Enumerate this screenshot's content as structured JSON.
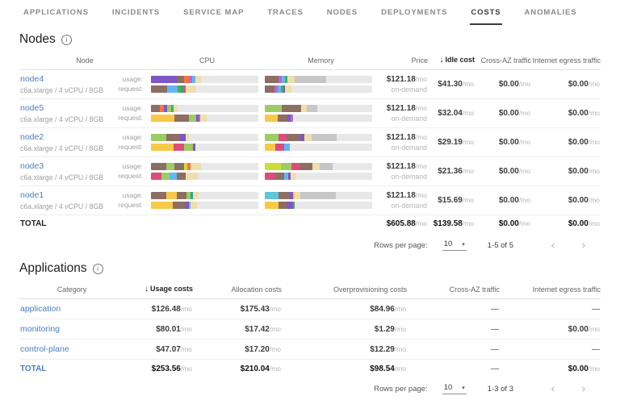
{
  "ui": {
    "per_mo": "/mo",
    "usage_label": "usage:",
    "request_label": "request:",
    "dash": "—",
    "sort_icon": "↓",
    "info_icon": "i",
    "rows_per_page_label": "Rows per page:",
    "page_size": "10",
    "caret_icon": "▾",
    "prev_icon": "‹",
    "next_icon": "›"
  },
  "palette": {
    "purple": "#7e57c2",
    "magenta": "#ba68c8",
    "brown": "#8d6e63",
    "orange": "#ff7043",
    "red": "#ef5350",
    "blue": "#64b5f6",
    "teal": "#26a69a",
    "green": "#9ccc65",
    "dgreen": "#4caf50",
    "yellowgreen": "#cddc39",
    "yellow": "#f7c948",
    "tan": "#eedfab",
    "pink": "#dd4d7b",
    "cyan": "#5ec5dc",
    "dgray": "#c7c7c7",
    "track": "#e8e8e8",
    "link_blue": "#4a7ebe"
  },
  "nav": {
    "tabs": [
      {
        "label": "APPLICATIONS",
        "active": false
      },
      {
        "label": "INCIDENTS",
        "active": false
      },
      {
        "label": "SERVICE MAP",
        "active": false
      },
      {
        "label": "TRACES",
        "active": false
      },
      {
        "label": "NODES",
        "active": false
      },
      {
        "label": "DEPLOYMENTS",
        "active": false
      },
      {
        "label": "COSTS",
        "active": true
      },
      {
        "label": "ANOMALIES",
        "active": false
      }
    ]
  },
  "nodes": {
    "title": "Nodes",
    "headers": {
      "node": "Node",
      "cpu": "CPU",
      "memory": "Memory",
      "price": "Price",
      "idle": "Idle cost",
      "cross": "Cross-AZ traffic",
      "egress": "Internet egress traffic"
    },
    "sorted_by": "Idle cost",
    "rows": [
      {
        "name": "node4",
        "instance": "c6a.xlarge / 4 vCPU / 8GB",
        "price": "$121.18",
        "price_note": "on-demand",
        "idle": "$41.30",
        "cross": "$0.00",
        "egress": "$0.00",
        "bars": {
          "cpu_usage": [
            [
              "purple",
              24
            ],
            [
              "brown",
              7
            ],
            [
              "orange",
              4
            ],
            [
              "magenta",
              3
            ],
            [
              "blue",
              3
            ],
            [
              "tan",
              6
            ]
          ],
          "cpu_request": [
            [
              "brown",
              15
            ],
            [
              "blue",
              10
            ],
            [
              "dgreen",
              3
            ],
            [
              "teal",
              2
            ],
            [
              "red",
              2
            ],
            [
              "tan",
              10
            ]
          ],
          "mem_usage": [
            [
              "brown",
              13
            ],
            [
              "magenta",
              3
            ],
            [
              "blue",
              3
            ],
            [
              "dgreen",
              2
            ],
            [
              "tan",
              7
            ],
            [
              "dgray",
              29
            ]
          ],
          "mem_request": [
            [
              "brown",
              9
            ],
            [
              "magenta",
              3
            ],
            [
              "blue",
              3
            ],
            [
              "dgreen",
              2
            ],
            [
              "purple",
              2
            ],
            [
              "tan",
              6
            ]
          ]
        }
      },
      {
        "name": "node5",
        "instance": "c6a.xlarge / 4 vCPU / 8GB",
        "price": "$121.18",
        "price_note": "on-demand",
        "idle": "$32.04",
        "cross": "$0.00",
        "egress": "$0.00",
        "bars": {
          "cpu_usage": [
            [
              "brown",
              8
            ],
            [
              "orange",
              4
            ],
            [
              "purple",
              3
            ],
            [
              "green",
              4
            ],
            [
              "dgreen",
              2
            ],
            [
              "tan",
              4
            ]
          ],
          "cpu_request": [
            [
              "yellow",
              22
            ],
            [
              "brown",
              13
            ],
            [
              "green",
              7
            ],
            [
              "purple",
              2
            ],
            [
              "magenta",
              2
            ],
            [
              "tan",
              6
            ]
          ],
          "mem_usage": [
            [
              "green",
              16
            ],
            [
              "brown",
              18
            ],
            [
              "tan",
              5
            ],
            [
              "dgray",
              10
            ]
          ],
          "mem_request": [
            [
              "yellow",
              12
            ],
            [
              "brown",
              9
            ],
            [
              "purple",
              3
            ],
            [
              "magenta",
              2
            ]
          ]
        }
      },
      {
        "name": "node2",
        "instance": "c6a.xlarge / 4 vCPU / 8GB",
        "price": "$121.18",
        "price_note": "on-demand",
        "idle": "$29.19",
        "cross": "$0.00",
        "egress": "$0.00",
        "bars": {
          "cpu_usage": [
            [
              "green",
              14
            ],
            [
              "brown",
              13
            ],
            [
              "purple",
              5
            ],
            [
              "tan",
              3
            ]
          ],
          "cpu_request": [
            [
              "yellow",
              21
            ],
            [
              "pink",
              10
            ],
            [
              "green",
              8
            ],
            [
              "purple",
              2
            ]
          ],
          "mem_usage": [
            [
              "green",
              13
            ],
            [
              "pink",
              7
            ],
            [
              "brown",
              13
            ],
            [
              "purple",
              4
            ],
            [
              "tan",
              7
            ],
            [
              "dgray",
              23
            ]
          ],
          "mem_request": [
            [
              "yellow",
              10
            ],
            [
              "pink",
              8
            ],
            [
              "blue",
              5
            ]
          ]
        }
      },
      {
        "name": "node3",
        "instance": "c6a.xlarge / 4 vCPU / 8GB",
        "price": "$121.18",
        "price_note": "on-demand",
        "idle": "$21.36",
        "cross": "$0.00",
        "egress": "$0.00",
        "bars": {
          "cpu_usage": [
            [
              "brown",
              14
            ],
            [
              "green",
              8
            ],
            [
              "brown",
              9
            ],
            [
              "yellowgreen",
              3
            ],
            [
              "orange",
              3
            ],
            [
              "tan",
              10
            ]
          ],
          "cpu_request": [
            [
              "pink",
              10
            ],
            [
              "green",
              7
            ],
            [
              "blue",
              7
            ],
            [
              "brown",
              8
            ],
            [
              "tan",
              12
            ]
          ],
          "mem_usage": [
            [
              "yellowgreen",
              15
            ],
            [
              "green",
              10
            ],
            [
              "pink",
              8
            ],
            [
              "brown",
              11
            ],
            [
              "tan",
              7
            ],
            [
              "dgray",
              12
            ]
          ],
          "mem_request": [
            [
              "pink",
              10
            ],
            [
              "brown",
              8
            ],
            [
              "blue",
              4
            ],
            [
              "purple",
              2
            ],
            [
              "tan",
              5
            ]
          ]
        }
      },
      {
        "name": "node1",
        "instance": "c6a.xlarge / 4 vCPU / 8GB",
        "price": "$121.18",
        "price_note": "on-demand",
        "idle": "$15.69",
        "cross": "$0.00",
        "egress": "$0.00",
        "bars": {
          "cpu_usage": [
            [
              "brown",
              14
            ],
            [
              "yellow",
              10
            ],
            [
              "brown",
              9
            ],
            [
              "green",
              4
            ],
            [
              "teal",
              2
            ],
            [
              "tan",
              5
            ]
          ],
          "cpu_request": [
            [
              "yellow",
              20
            ],
            [
              "brown",
              12
            ],
            [
              "purple",
              3
            ],
            [
              "blue",
              2
            ],
            [
              "tan",
              6
            ]
          ],
          "mem_usage": [
            [
              "cyan",
              13
            ],
            [
              "brown",
              10
            ],
            [
              "purple",
              3
            ],
            [
              "yellow",
              2
            ],
            [
              "tan",
              5
            ],
            [
              "dgray",
              33
            ]
          ],
          "mem_request": [
            [
              "yellow",
              13
            ],
            [
              "brown",
              8
            ],
            [
              "purple",
              5
            ],
            [
              "dgreen",
              2
            ]
          ]
        }
      }
    ],
    "total": {
      "label": "TOTAL",
      "price": "$605.88",
      "idle": "$139.58",
      "cross": "$0.00",
      "egress": "$0.00"
    },
    "pagination": {
      "range": "1-5 of 5"
    }
  },
  "applications": {
    "title": "Applications",
    "headers": {
      "category": "Category",
      "usage": "Usage costs",
      "allocation": "Allocation costs",
      "overprov": "Overprovisioning costs",
      "cross": "Cross-AZ traffic",
      "egress": "Internet egress traffic"
    },
    "sorted_by": "Usage costs",
    "rows": [
      {
        "category": "application",
        "usage": "$126.48",
        "allocation": "$175.43",
        "overprov": "$84.96",
        "cross": "—",
        "egress": "—"
      },
      {
        "category": "monitoring",
        "usage": "$80.01",
        "allocation": "$17.42",
        "overprov": "$1.29",
        "cross": "—",
        "egress": "$0.00"
      },
      {
        "category": "control-plane",
        "usage": "$47.07",
        "allocation": "$17.20",
        "overprov": "$12.29",
        "cross": "—",
        "egress": "—"
      }
    ],
    "total": {
      "label": "TOTAL",
      "usage": "$253.56",
      "allocation": "$210.04",
      "overprov": "$98.54",
      "cross": "—",
      "egress": "$0.00"
    },
    "pagination": {
      "range": "1-3 of 3"
    }
  }
}
